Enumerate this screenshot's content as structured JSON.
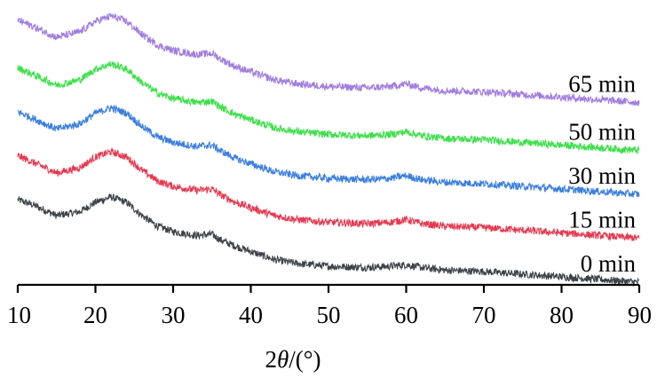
{
  "chart_data": {
    "type": "line",
    "title": "",
    "xlabel": "2θ/(°)",
    "xlabel_parts": {
      "prefix": "2",
      "theta": "θ",
      "suffix": "/(°)"
    },
    "ylabel": "",
    "xlim": [
      10,
      90
    ],
    "x_ticks": [
      10,
      20,
      30,
      40,
      50,
      60,
      70,
      80,
      90
    ],
    "y_axis_visible": false,
    "grid": false,
    "series": [
      {
        "name": "0 min",
        "color": "#3b4248",
        "x": [
          10,
          12,
          15,
          18,
          20,
          22,
          24,
          26,
          28,
          30,
          33,
          35,
          36,
          38,
          40,
          43,
          46,
          50,
          55,
          58,
          60,
          62,
          65,
          70,
          75,
          80,
          85,
          90
        ],
        "y": [
          0.62,
          0.58,
          0.5,
          0.53,
          0.6,
          0.64,
          0.6,
          0.5,
          0.42,
          0.38,
          0.35,
          0.36,
          0.32,
          0.27,
          0.23,
          0.17,
          0.14,
          0.12,
          0.11,
          0.12,
          0.13,
          0.11,
          0.09,
          0.08,
          0.06,
          0.04,
          0.02,
          0.0
        ]
      },
      {
        "name": "15 min",
        "color": "#e8374f",
        "x": [
          10,
          12,
          15,
          18,
          20,
          22,
          24,
          26,
          28,
          30,
          33,
          35,
          36,
          38,
          40,
          43,
          46,
          50,
          55,
          58,
          60,
          62,
          65,
          70,
          75,
          80,
          85,
          90
        ],
        "y": [
          0.95,
          0.9,
          0.82,
          0.86,
          0.94,
          0.98,
          0.94,
          0.84,
          0.76,
          0.72,
          0.69,
          0.7,
          0.66,
          0.6,
          0.56,
          0.5,
          0.47,
          0.45,
          0.44,
          0.45,
          0.47,
          0.44,
          0.42,
          0.41,
          0.39,
          0.37,
          0.35,
          0.33
        ]
      },
      {
        "name": "30 min",
        "color": "#3a7ee0",
        "x": [
          10,
          12,
          15,
          18,
          20,
          22,
          24,
          26,
          28,
          30,
          33,
          35,
          36,
          38,
          40,
          43,
          46,
          50,
          55,
          58,
          60,
          62,
          65,
          70,
          75,
          80,
          85,
          90
        ],
        "y": [
          1.28,
          1.23,
          1.15,
          1.19,
          1.27,
          1.31,
          1.27,
          1.17,
          1.09,
          1.05,
          1.02,
          1.03,
          0.99,
          0.93,
          0.89,
          0.83,
          0.8,
          0.78,
          0.77,
          0.78,
          0.8,
          0.77,
          0.75,
          0.74,
          0.72,
          0.7,
          0.68,
          0.66
        ]
      },
      {
        "name": "50 min",
        "color": "#3de04a",
        "x": [
          10,
          12,
          15,
          18,
          20,
          22,
          24,
          26,
          28,
          30,
          33,
          35,
          36,
          38,
          40,
          43,
          46,
          50,
          55,
          58,
          60,
          62,
          65,
          70,
          75,
          80,
          85,
          90
        ],
        "y": [
          1.61,
          1.56,
          1.48,
          1.52,
          1.6,
          1.64,
          1.6,
          1.5,
          1.42,
          1.38,
          1.35,
          1.36,
          1.32,
          1.26,
          1.22,
          1.16,
          1.13,
          1.11,
          1.1,
          1.11,
          1.13,
          1.1,
          1.08,
          1.07,
          1.05,
          1.03,
          1.01,
          0.99
        ]
      },
      {
        "name": "65 min",
        "color": "#a17de0",
        "x": [
          10,
          12,
          15,
          18,
          20,
          22,
          24,
          26,
          28,
          30,
          33,
          35,
          36,
          38,
          40,
          43,
          46,
          50,
          55,
          58,
          60,
          62,
          65,
          70,
          75,
          80,
          85,
          90
        ],
        "y": [
          1.97,
          1.92,
          1.84,
          1.88,
          1.96,
          2.0,
          1.96,
          1.86,
          1.78,
          1.74,
          1.71,
          1.72,
          1.68,
          1.62,
          1.58,
          1.52,
          1.49,
          1.47,
          1.46,
          1.47,
          1.49,
          1.46,
          1.44,
          1.43,
          1.41,
          1.39,
          1.37,
          1.35
        ]
      }
    ]
  }
}
